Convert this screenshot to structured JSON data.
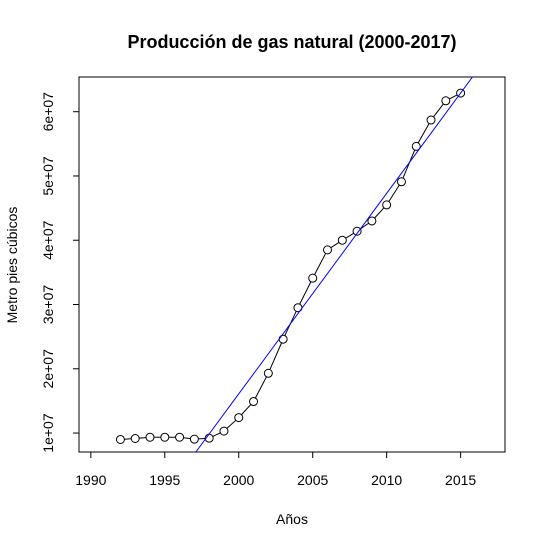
{
  "chart_data": {
    "type": "line",
    "title": "Producción de gas natural (2000-2017)",
    "xlabel": "Años",
    "ylabel": "Metro pies cúbicos",
    "xlim": [
      1989.2,
      2018.0
    ],
    "ylim": [
      7050000,
      65400000
    ],
    "x_ticks": [
      1990,
      1995,
      2000,
      2005,
      2010,
      2015
    ],
    "x_tick_labels": [
      "1990",
      "1995",
      "2000",
      "2005",
      "2010",
      "2015"
    ],
    "y_ticks": [
      10000000,
      20000000,
      30000000,
      40000000,
      50000000,
      60000000
    ],
    "y_tick_labels": [
      "1e+07",
      "2e+07",
      "3e+07",
      "4e+07",
      "5e+07",
      "6e+07"
    ],
    "grid": false,
    "series": [
      {
        "style": "points-and-lines",
        "marker": "open-circle",
        "color": "#000000",
        "x": [
          1992,
          1993,
          1994,
          1995,
          1996,
          1997,
          1998,
          1999,
          2000,
          2001,
          2002,
          2003,
          2004,
          2005,
          2006,
          2007,
          2008,
          2009,
          2010,
          2011,
          2012,
          2013,
          2014,
          2015
        ],
        "y": [
          9000000,
          9150000,
          9350000,
          9350000,
          9350000,
          9050000,
          9200000,
          10300000,
          12400000,
          14900000,
          19300000,
          24600000,
          29500000,
          34100000,
          38500000,
          40000000,
          41400000,
          43000000,
          45500000,
          49100000,
          54600000,
          58700000,
          61700000,
          62900000
        ]
      },
      {
        "style": "line",
        "color": "#0000ff",
        "x": [
          1997.1,
          2015.8
        ],
        "y": [
          7050000,
          65400000
        ]
      }
    ]
  }
}
